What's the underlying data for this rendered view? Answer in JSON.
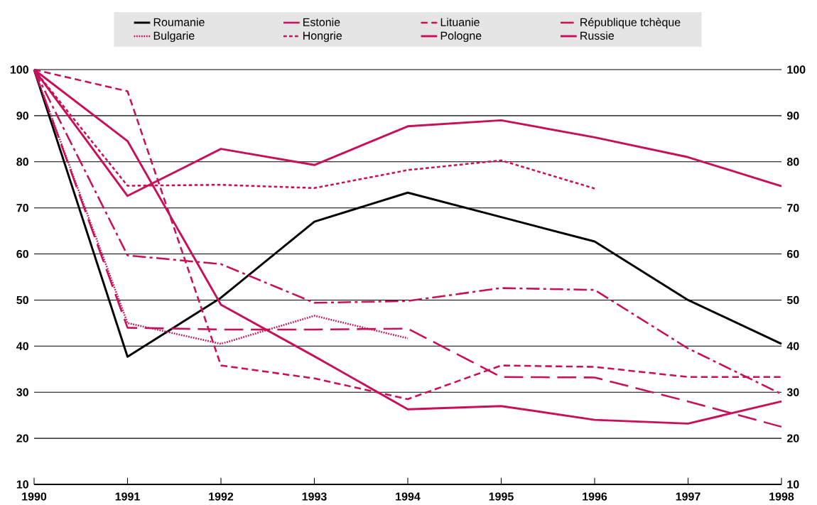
{
  "chart_data": {
    "type": "line",
    "x": [
      1990,
      1991,
      1992,
      1993,
      1994,
      1995,
      1996,
      1997,
      1998
    ],
    "series": [
      {
        "name": "Roumanie",
        "color": "#000000",
        "line_style": "solid",
        "values": [
          100,
          37.7,
          50.5,
          67,
          73.3,
          68,
          62.7,
          50,
          40.5
        ]
      },
      {
        "name": "Estonie",
        "color": "#c8105a",
        "line_style": "long dashed",
        "values": [
          100,
          44,
          43.6,
          43.6,
          43.8,
          33.3,
          33.2,
          28,
          22.5
        ]
      },
      {
        "name": "Lituanie",
        "color": "#c8105a",
        "line_style": "dashed",
        "values": [
          100,
          95.3,
          35.8,
          33,
          28.5,
          35.8,
          35.5,
          33.3,
          33.3
        ]
      },
      {
        "name": "République tchèque",
        "color": "#c8105a",
        "line_style": "dash dot",
        "values": [
          100,
          59.7,
          57.8,
          49.4,
          49.8,
          52.6,
          52.2,
          39.5,
          29.6
        ]
      },
      {
        "name": "Bulgarie",
        "color": "#c8105a",
        "line_style": "dotted",
        "values": [
          100,
          45,
          40.5,
          46.6,
          41.7,
          null,
          null,
          null,
          null
        ]
      },
      {
        "name": "Hongrie",
        "color": "#c8105a",
        "line_style": "densely dashed",
        "values": [
          100,
          74.8,
          75,
          74.3,
          78.2,
          80.3,
          74.2,
          null,
          null
        ]
      },
      {
        "name": "Pologne",
        "color": "#c8105a",
        "line_style": "solid",
        "values": [
          100,
          72.6,
          82.8,
          79.3,
          87.7,
          89,
          85.3,
          81,
          74.7
        ]
      },
      {
        "name": "Russie",
        "color": "#c8105a",
        "line_style": "solid",
        "values": [
          100,
          84.5,
          49,
          37.8,
          26.3,
          27,
          24,
          23.2,
          28
        ]
      }
    ],
    "xlim": [
      1990,
      1998
    ],
    "xticks": [
      1990,
      1991,
      1992,
      1993,
      1994,
      1995,
      1996,
      1997,
      1998
    ],
    "ylim": [
      10,
      100
    ],
    "yticks": [
      10,
      20,
      30,
      40,
      50,
      60,
      70,
      80,
      90,
      100
    ],
    "y2lim": [
      10,
      100
    ],
    "y2ticks": [
      10,
      20,
      30,
      40,
      50,
      60,
      70,
      80,
      90,
      100
    ],
    "grid": "y",
    "legend": "top"
  }
}
